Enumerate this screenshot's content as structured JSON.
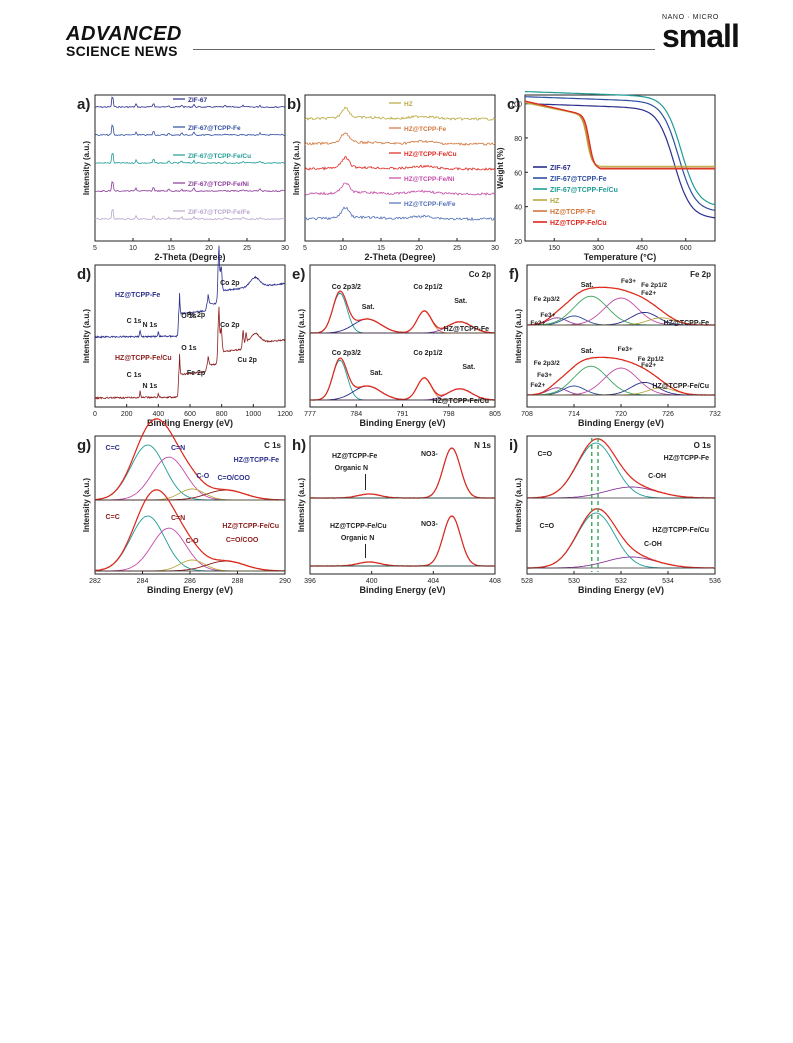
{
  "header": {
    "brand_line1": "ADVANCED",
    "brand_line2": "SCIENCE NEWS",
    "journal_prefix": "NANO · MICRO",
    "journal_name": "small"
  },
  "panels": {
    "a": {
      "letter": "a)",
      "xlabel": "2-Theta (Degree)",
      "ylabel": "Intensity (a.u.)",
      "ticks": [
        "5",
        "10",
        "15",
        "20",
        "25",
        "30"
      ],
      "legend": [
        "ZIF-67",
        "ZIF-67@TCPP-Fe",
        "ZIF-67@TCPP-Fe/Cu",
        "ZIF-67@TCPP-Fe/Ni",
        "ZIF-67@TCPP-Fe/Fe"
      ]
    },
    "b": {
      "letter": "b)",
      "xlabel": "2-Theta (Degree)",
      "ylabel": "Intensity (a.u.)",
      "ticks": [
        "5",
        "10",
        "15",
        "20",
        "25",
        "30"
      ],
      "legend": [
        "HZ",
        "HZ@TCPP-Fe",
        "HZ@TCPP-Fe/Cu",
        "HZ@TCPP-Fe/Ni",
        "HZ@TCPP-Fe/Fe"
      ]
    },
    "c": {
      "letter": "c)",
      "xlabel": "Temperature (°C)",
      "ylabel": "Weight (%)",
      "xticks": [
        "150",
        "300",
        "450",
        "600"
      ],
      "yticks": [
        "100",
        "80",
        "60",
        "40",
        "20"
      ],
      "legend": [
        "ZIF-67",
        "ZIF-67@TCPP-Fe",
        "ZIF-67@TCPP-Fe/Cu",
        "HZ",
        "HZ@TCPP-Fe",
        "HZ@TCPP-Fe/Cu"
      ]
    },
    "d": {
      "letter": "d)",
      "xlabel": "Binding Energy (eV)",
      "ylabel": "Intensity (a.u.)",
      "ticks": [
        "0",
        "200",
        "400",
        "600",
        "800",
        "1000",
        "1200"
      ],
      "s1": "HZ@TCPP-Fe",
      "s2": "HZ@TCPP-Fe/Cu",
      "labels": [
        "O 1s",
        "Co 2p",
        "C 1s",
        "N 1s",
        "Fe 2p",
        "O 1s",
        "Co 2p",
        "C 1s",
        "N 1s",
        "Fe 2p",
        "Cu 2p"
      ]
    },
    "e": {
      "letter": "e)",
      "corner": "Co 2p",
      "xlabel": "Binding Energy (eV)",
      "ylabel": "Intensity (a.u.)",
      "ticks": [
        "777",
        "784",
        "791",
        "798",
        "805"
      ],
      "s1": "HZ@TCPP-Fe",
      "s2": "HZ@TCPP-Fe/Cu",
      "labels": [
        "Co 2p3/2",
        "Sat.",
        "Co 2p1/2",
        "Sat.",
        "Co 2p3/2",
        "Sat.",
        "Co 2p1/2",
        "Sat."
      ]
    },
    "f": {
      "letter": "f)",
      "corner": "Fe 2p",
      "xlabel": "Binding Energy (eV)",
      "ylabel": "Intensity (a.u.)",
      "ticks": [
        "708",
        "714",
        "720",
        "726",
        "732"
      ],
      "s1": "HZ@TCPP-Fe",
      "s2": "HZ@TCPP-Fe/Cu",
      "labels": [
        "Sat.",
        "Fe3+",
        "Fe 2p1/2",
        "Fe2+",
        "Fe 2p3/2",
        "Fe3+",
        "Fe2+",
        "Sat.",
        "Fe3+",
        "Fe 2p1/2",
        "Fe2+",
        "Fe 2p3/2",
        "Fe3+",
        "Fe2+"
      ]
    },
    "g": {
      "letter": "g)",
      "corner": "C 1s",
      "xlabel": "Binding Energy (eV)",
      "ylabel": "Intensity (a.u.)",
      "ticks": [
        "282",
        "284",
        "286",
        "288",
        "290"
      ],
      "s1": "HZ@TCPP-Fe",
      "s2": "HZ@TCPP-Fe/Cu",
      "labels": [
        "C=C",
        "C=N",
        "C-O",
        "C=O/COO",
        "C=C",
        "C=N",
        "C-O",
        "C=O/COO"
      ]
    },
    "h": {
      "letter": "h)",
      "corner": "N 1s",
      "xlabel": "Binding Energy (eV)",
      "ylabel": "Intensity (a.u.)",
      "ticks": [
        "396",
        "400",
        "404",
        "408"
      ],
      "s1": "HZ@TCPP-Fe",
      "s2": "HZ@TCPP-Fe/Cu",
      "labels": [
        "Organic N",
        "NO3-",
        "Organic N",
        "NO3-"
      ]
    },
    "i": {
      "letter": "i)",
      "corner": "O 1s",
      "xlabel": "Binding Energy (eV)",
      "ylabel": "Intensity (a.u.)",
      "ticks": [
        "528",
        "530",
        "532",
        "534",
        "536"
      ],
      "s1": "HZ@TCPP-Fe",
      "s2": "HZ@TCPP-Fe/Cu",
      "labels": [
        "C=O",
        "C-OH",
        "C=O",
        "C-OH"
      ]
    }
  },
  "colors": {
    "navy": "#2a2e8c",
    "blue": "#2f4fa0",
    "teal": "#1f9c96",
    "purple": "#8a3a9a",
    "lilac": "#b9a6cf",
    "olive": "#b7a83c",
    "orange": "#d2763a",
    "red": "#e0261e",
    "magenta": "#c34aa5",
    "periwinkle": "#4f6fb8",
    "darkred": "#8a1c1c",
    "green": "#39a55a"
  }
}
